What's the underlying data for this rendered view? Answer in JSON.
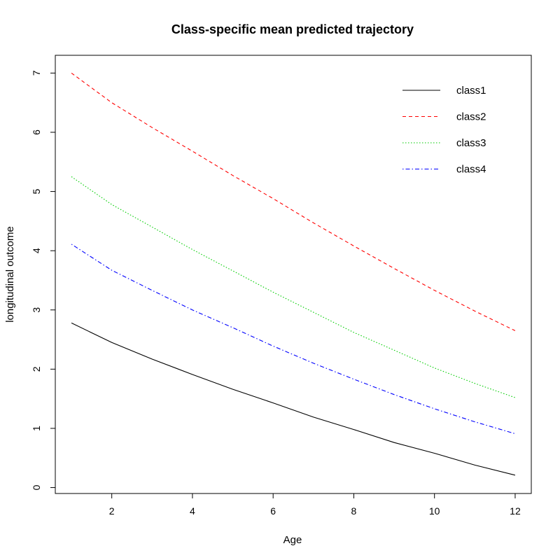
{
  "chart_data": {
    "type": "line",
    "title": "Class-specific mean predicted trajectory",
    "xlabel": "Age",
    "ylabel": "longitudinal outcome",
    "xlim": [
      0.6,
      12.4
    ],
    "ylim": [
      -0.1,
      7.3
    ],
    "xticks": [
      2,
      4,
      6,
      8,
      10,
      12
    ],
    "yticks": [
      0,
      1,
      2,
      3,
      4,
      5,
      6,
      7
    ],
    "grid": false,
    "legend_position": "top-right",
    "x": [
      1,
      2,
      3,
      4,
      5,
      6,
      7,
      8,
      9,
      10,
      11,
      12
    ],
    "series": [
      {
        "name": "class1",
        "color": "#000000",
        "dash": "solid",
        "values": [
          2.78,
          2.45,
          2.17,
          1.91,
          1.66,
          1.43,
          1.19,
          0.98,
          0.76,
          0.58,
          0.38,
          0.21
        ]
      },
      {
        "name": "class2",
        "color": "#ff0000",
        "dash": "dashed",
        "values": [
          7.0,
          6.5,
          6.08,
          5.68,
          5.27,
          4.88,
          4.47,
          4.08,
          3.7,
          3.33,
          2.98,
          2.65
        ]
      },
      {
        "name": "class3",
        "color": "#00cd00",
        "dash": "dotted",
        "values": [
          5.25,
          4.78,
          4.4,
          4.02,
          3.66,
          3.3,
          2.96,
          2.62,
          2.32,
          2.02,
          1.76,
          1.52
        ]
      },
      {
        "name": "class4",
        "color": "#0000ff",
        "dash": "dotdash",
        "values": [
          4.11,
          3.67,
          3.33,
          3.0,
          2.7,
          2.39,
          2.1,
          1.83,
          1.57,
          1.33,
          1.11,
          0.91
        ]
      }
    ]
  }
}
